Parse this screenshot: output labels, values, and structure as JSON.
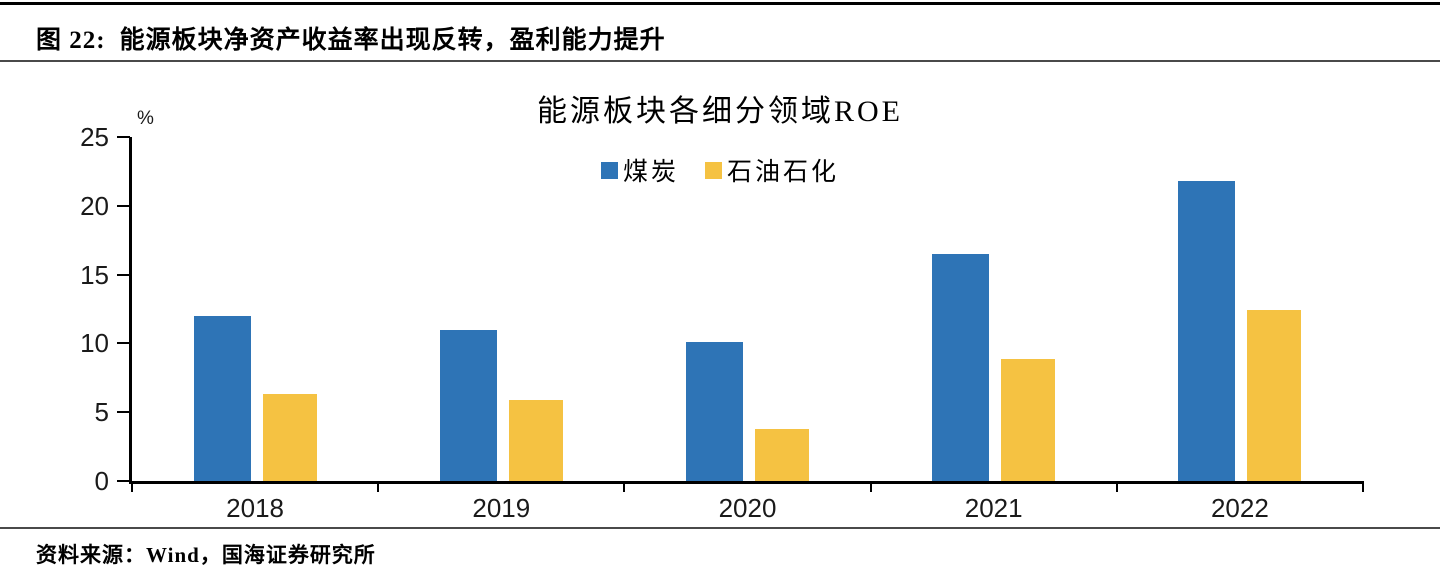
{
  "figure": {
    "label": "图 22:",
    "title": "能源板块净资产收益率出现反转，盈利能力提升"
  },
  "source": "资料来源：Wind，国海证券研究所",
  "chart_data": {
    "type": "bar",
    "title": "能源板块各细分领域ROE",
    "unit_label": "%",
    "categories": [
      "2018",
      "2019",
      "2020",
      "2021",
      "2022"
    ],
    "series": [
      {
        "name": "煤炭",
        "color": "#2E74B6",
        "values": [
          12.0,
          11.0,
          10.1,
          16.5,
          21.8
        ]
      },
      {
        "name": "石油石化",
        "color": "#F5C242",
        "values": [
          6.3,
          5.9,
          3.8,
          8.9,
          12.4
        ]
      }
    ],
    "ylim": [
      0,
      25
    ],
    "yticks": [
      0,
      5,
      10,
      15,
      20,
      25
    ],
    "xlabel": "",
    "ylabel": "",
    "grid": false,
    "legend_position": "top-center"
  }
}
